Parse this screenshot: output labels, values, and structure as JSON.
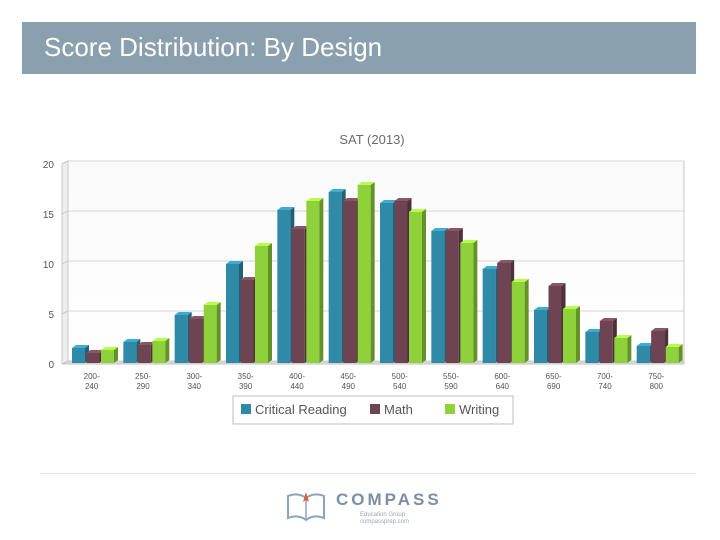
{
  "slide": {
    "title": "Score Distribution: By Design"
  },
  "logo": {
    "word": "COMPASS",
    "sub1": "Education Group",
    "sub2": "compassprep.com"
  },
  "colors": {
    "critical_reading": "#2f8aa7",
    "math": "#6e4452",
    "writing": "#8fd13a",
    "title_bar": "#8aa0ae"
  },
  "chart_data": {
    "type": "bar",
    "title": "SAT (2013)",
    "xlabel": "",
    "ylabel": "",
    "ylim": [
      0,
      20
    ],
    "yticks": [
      0,
      5,
      10,
      15,
      20
    ],
    "grid": true,
    "legend_position": "bottom",
    "categories": [
      [
        "200-",
        "240"
      ],
      [
        "250-",
        "290"
      ],
      [
        "300-",
        "340"
      ],
      [
        "350-",
        "390"
      ],
      [
        "400-",
        "440"
      ],
      [
        "450-",
        "490"
      ],
      [
        "500-",
        "540"
      ],
      [
        "550-",
        "590"
      ],
      [
        "600-",
        "640"
      ],
      [
        "650-",
        "690"
      ],
      [
        "700-",
        "740"
      ],
      [
        "750-",
        "800"
      ]
    ],
    "series": [
      {
        "name": "Critical Reading",
        "color": "#2f8aa7",
        "values": [
          1.6,
          2.2,
          4.9,
          10.0,
          15.4,
          17.2,
          16.1,
          13.3,
          9.5,
          5.4,
          3.2,
          1.8
        ]
      },
      {
        "name": "Math",
        "color": "#6e4452",
        "values": [
          1.1,
          1.9,
          4.5,
          8.4,
          13.5,
          16.3,
          16.3,
          13.3,
          10.1,
          7.8,
          4.3,
          3.3
        ]
      },
      {
        "name": "Writing",
        "color": "#8fd13a",
        "values": [
          1.4,
          2.3,
          5.9,
          11.8,
          16.3,
          17.9,
          15.2,
          12.1,
          8.2,
          5.5,
          2.6,
          1.7
        ]
      }
    ]
  }
}
